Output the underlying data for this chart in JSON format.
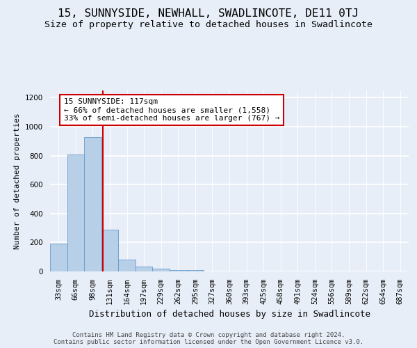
{
  "title": "15, SUNNYSIDE, NEWHALL, SWADLINCOTE, DE11 0TJ",
  "subtitle": "Size of property relative to detached houses in Swadlincote",
  "xlabel": "Distribution of detached houses by size in Swadlincote",
  "ylabel": "Number of detached properties",
  "bar_categories": [
    "33sqm",
    "66sqm",
    "98sqm",
    "131sqm",
    "164sqm",
    "197sqm",
    "229sqm",
    "262sqm",
    "295sqm",
    "327sqm",
    "360sqm",
    "393sqm",
    "425sqm",
    "458sqm",
    "491sqm",
    "524sqm",
    "556sqm",
    "589sqm",
    "622sqm",
    "654sqm",
    "687sqm"
  ],
  "bar_values": [
    190,
    810,
    930,
    290,
    80,
    35,
    18,
    12,
    8,
    0,
    0,
    0,
    0,
    0,
    0,
    0,
    0,
    0,
    0,
    0,
    0
  ],
  "bar_color": "#b8cfe8",
  "bar_edge_color": "#6699cc",
  "vline_color": "#cc0000",
  "vline_x": 2.576,
  "annotation_line1": "15 SUNNYSIDE: 117sqm",
  "annotation_line2": "← 66% of detached houses are smaller (1,558)",
  "annotation_line3": "33% of semi-detached houses are larger (767) →",
  "annotation_box_facecolor": "#ffffff",
  "annotation_box_edgecolor": "#cc0000",
  "ylim": [
    0,
    1250
  ],
  "yticks": [
    0,
    200,
    400,
    600,
    800,
    1000,
    1200
  ],
  "background_color": "#e8eef8",
  "grid_color": "#ffffff",
  "footer_text": "Contains HM Land Registry data © Crown copyright and database right 2024.\nContains public sector information licensed under the Open Government Licence v3.0.",
  "title_fontsize": 11.5,
  "subtitle_fontsize": 9.5,
  "xlabel_fontsize": 9,
  "ylabel_fontsize": 8,
  "tick_fontsize": 7.5,
  "annotation_fontsize": 8,
  "footer_fontsize": 6.5
}
